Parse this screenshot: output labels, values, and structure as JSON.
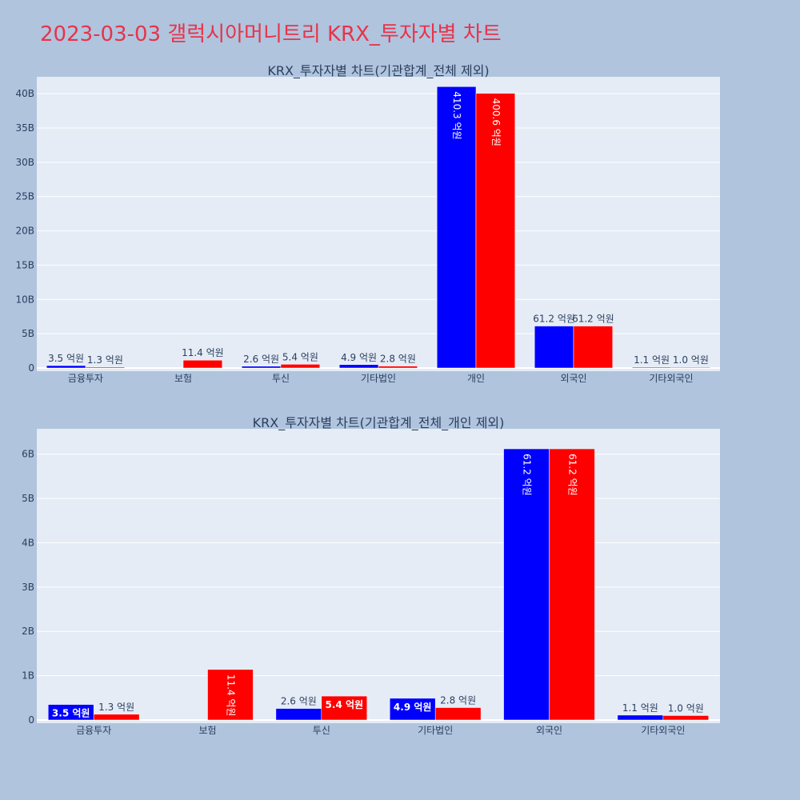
{
  "page": {
    "title": "2023-03-03 갤럭시아머니트리 KRX_투자자별 차트"
  },
  "colors": {
    "background": "#b0c4de",
    "plot_bg": "#e5ecf6",
    "title": "#e8334a",
    "series_a": "#0000ff",
    "series_b": "#ff0000"
  },
  "chart_data": [
    {
      "type": "bar",
      "title": "KRX_투자자별 차트(기관합계_전체 제외)",
      "categories": [
        "금융투자",
        "보험",
        "투신",
        "기타법인",
        "개인",
        "외국인",
        "기타외국인"
      ],
      "yticks": [
        "0",
        "5B",
        "10B",
        "15B",
        "20B",
        "25B",
        "30B",
        "35B",
        "40B"
      ],
      "ylim": [
        0,
        42
      ],
      "y_unit": "B",
      "grid": true,
      "series": [
        {
          "values": [
            0.35,
            0,
            0.26,
            0.49,
            41.03,
            6.12,
            0.11
          ],
          "labels": [
            "3.5 억원",
            "",
            "2.6 억원",
            "4.9 억원",
            "410.3 억원",
            "61.2 억원",
            "1.1 억원"
          ]
        },
        {
          "values": [
            0.13,
            1.14,
            0.54,
            0.28,
            40.06,
            6.12,
            0.1
          ],
          "labels": [
            "1.3 억원",
            "11.4 억원",
            "5.4 억원",
            "2.8 억원",
            "400.6 억원",
            "61.2 억원",
            "1.0 억원"
          ]
        }
      ]
    },
    {
      "type": "bar",
      "title": "KRX_투자자별 차트(기관합계_전체_개인 제외)",
      "categories": [
        "금융투자",
        "보험",
        "투신",
        "기타법인",
        "외국인",
        "기타외국인"
      ],
      "yticks": [
        "0",
        "1B",
        "2B",
        "3B",
        "4B",
        "5B",
        "6B"
      ],
      "ylim": [
        0,
        6.5
      ],
      "y_unit": "B",
      "grid": true,
      "series": [
        {
          "values": [
            0.35,
            0,
            0.26,
            0.49,
            6.12,
            0.11
          ],
          "labels": [
            "3.5 억원",
            "",
            "2.6 억원",
            "4.9 억원",
            "61.2 억원",
            "1.1 억원"
          ]
        },
        {
          "values": [
            0.13,
            1.14,
            0.54,
            0.28,
            6.12,
            0.1
          ],
          "labels": [
            "1.3 억원",
            "11.4 억원",
            "5.4 억원",
            "2.8 억원",
            "61.2 억원",
            "1.0 억원"
          ]
        }
      ]
    }
  ]
}
